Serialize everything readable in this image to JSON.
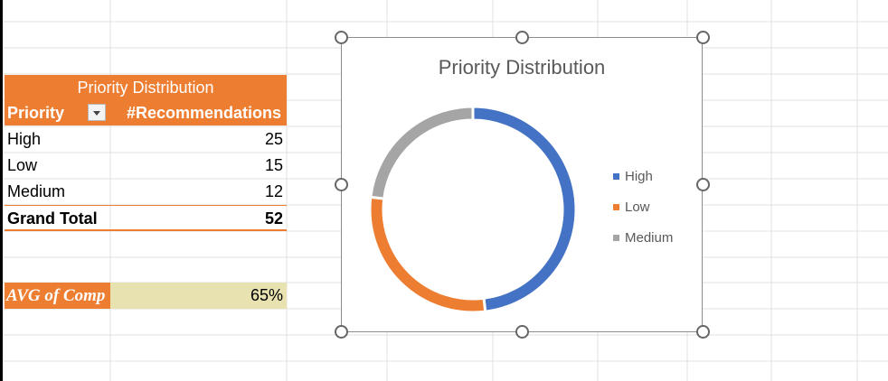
{
  "pivot": {
    "title": "Priority Distribution",
    "header_col1": "Priority",
    "header_col2": "#Recommendations",
    "rows": [
      {
        "label": "High",
        "value": "25"
      },
      {
        "label": "Low",
        "value": "15"
      },
      {
        "label": "Medium",
        "value": "12"
      }
    ],
    "total_label": "Grand Total",
    "total_value": "52"
  },
  "avg": {
    "label": "AVG of Comp",
    "value": "65%"
  },
  "chart_data": {
    "type": "pie",
    "variant": "doughnut",
    "title": "Priority Distribution",
    "categories": [
      "High",
      "Low",
      "Medium"
    ],
    "values": [
      25,
      15,
      12
    ],
    "colors": [
      "#4472C4",
      "#ED7D31",
      "#A5A5A5"
    ],
    "legend": "right"
  },
  "icons": {
    "filter": "filter-dropdown-icon"
  }
}
